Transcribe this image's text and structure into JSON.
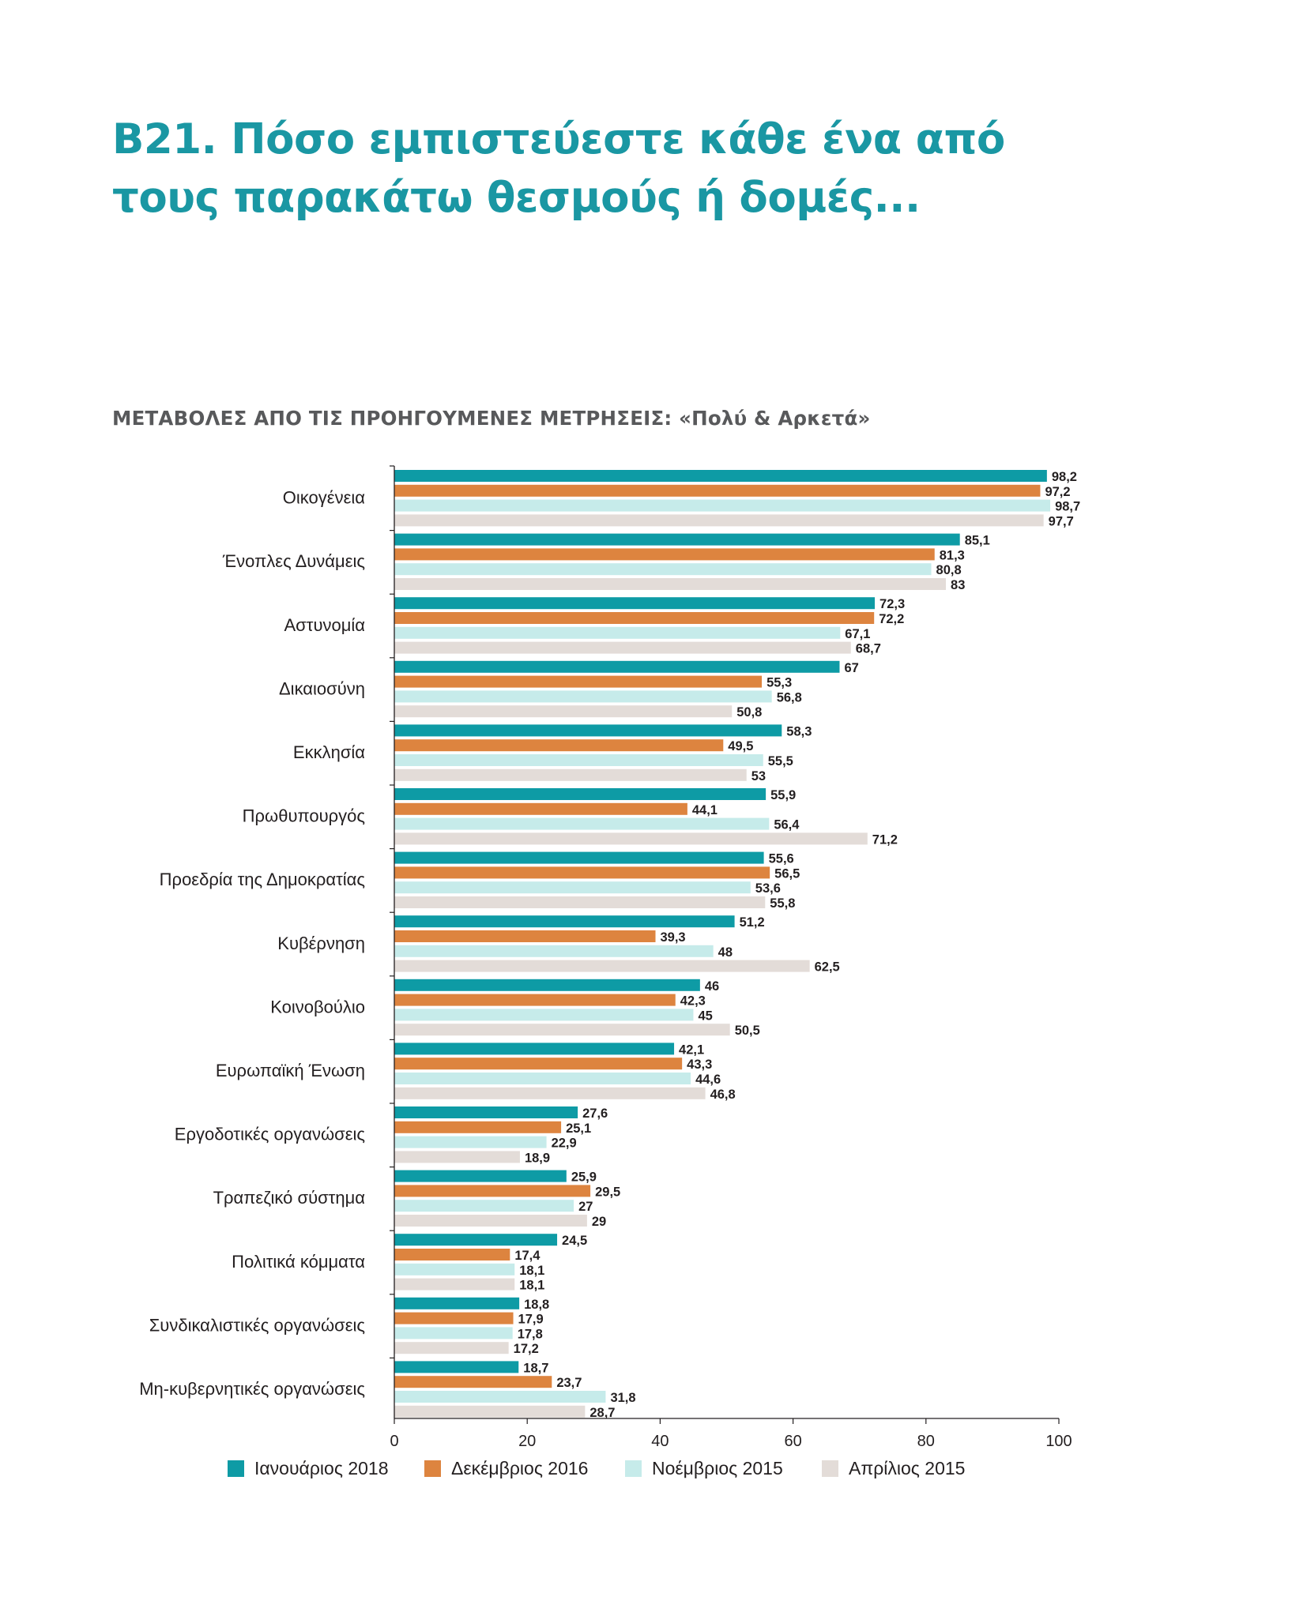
{
  "header": {
    "title_line1": "B21. Πόσο εμπιστεύεστε κάθε ένα από",
    "title_line2": "τους παρακάτω θεσμούς ή δομές...",
    "subtitle": "ΜΕΤΑΒΟΛΕΣ ΑΠΟ ΤΙΣ ΠΡΟΗΓΟΥΜΕΝΕΣ ΜΕΤΡΗΣΕΙΣ: «Πολύ & Αρκετά»"
  },
  "chart_data": {
    "type": "bar",
    "orientation": "horizontal",
    "title": "",
    "xlabel": "",
    "ylabel": "",
    "xlim": [
      0,
      100
    ],
    "xticks": [
      0,
      20,
      40,
      60,
      80,
      100
    ],
    "grid": false,
    "legend_placement": "bottom",
    "categories": [
      "Οικογένεια",
      "Ένοπλες Δυνάμεις",
      "Αστυνομία",
      "Δικαιοσύνη",
      "Εκκλησία",
      "Πρωθυπουργός",
      "Προεδρία της Δημοκρατίας",
      "Κυβέρνηση",
      "Κοινοβούλιο",
      "Ευρωπαϊκή Ένωση",
      "Εργοδοτικές οργανώσεις",
      "Τραπεζικό σύστημα",
      "Πολιτικά κόμματα",
      "Συνδικαλιστικές οργανώσεις",
      "Μη-κυβερνητικές οργανώσεις"
    ],
    "series": [
      {
        "name": "Ιανουάριος 2018",
        "color": "#0e9ba5",
        "values": [
          98.2,
          85.1,
          72.3,
          67,
          58.3,
          55.9,
          55.6,
          51.2,
          46,
          42.1,
          27.6,
          25.9,
          24.5,
          18.8,
          18.7
        ],
        "labels": [
          "98,2",
          "85,1",
          "72,3",
          "67",
          "58,3",
          "55,9",
          "55,6",
          "51,2",
          "46",
          "42,1",
          "27,6",
          "25,9",
          "24,5",
          "18,8",
          "18,7"
        ]
      },
      {
        "name": "Δεκέμβριος 2016",
        "color": "#dd843f",
        "values": [
          97.2,
          81.3,
          72.2,
          55.3,
          49.5,
          44.1,
          56.5,
          39.3,
          42.3,
          43.3,
          25.1,
          29.5,
          17.4,
          17.9,
          23.7
        ],
        "labels": [
          "97,2",
          "81,3",
          "72,2",
          "55,3",
          "49,5",
          "44,1",
          "56,5",
          "39,3",
          "42,3",
          "43,3",
          "25,1",
          "29,5",
          "17,4",
          "17,9",
          "23,7"
        ]
      },
      {
        "name": "Νοέμβριος 2015",
        "color": "#c6ebea",
        "values": [
          98.7,
          80.8,
          67.1,
          56.8,
          55.5,
          56.4,
          53.6,
          48,
          45,
          44.6,
          22.9,
          27,
          18.1,
          17.8,
          31.8
        ],
        "labels": [
          "98,7",
          "80,8",
          "67,1",
          "56,8",
          "55,5",
          "56,4",
          "53,6",
          "48",
          "45",
          "44,6",
          "22,9",
          "27",
          "18,1",
          "17,8",
          "31,8"
        ]
      },
      {
        "name": "Απρίλιος 2015",
        "color": "#e3dcd8",
        "values": [
          97.7,
          83,
          68.7,
          50.8,
          53,
          71.2,
          55.8,
          62.5,
          50.5,
          46.8,
          18.9,
          29,
          18.1,
          17.2,
          28.7
        ],
        "labels": [
          "97,7",
          "83",
          "68,7",
          "50,8",
          "53",
          "71,2",
          "55,8",
          "62,5",
          "50,5",
          "46,8",
          "18,9",
          "29",
          "18,1",
          "17,2",
          "28,7"
        ]
      }
    ]
  }
}
